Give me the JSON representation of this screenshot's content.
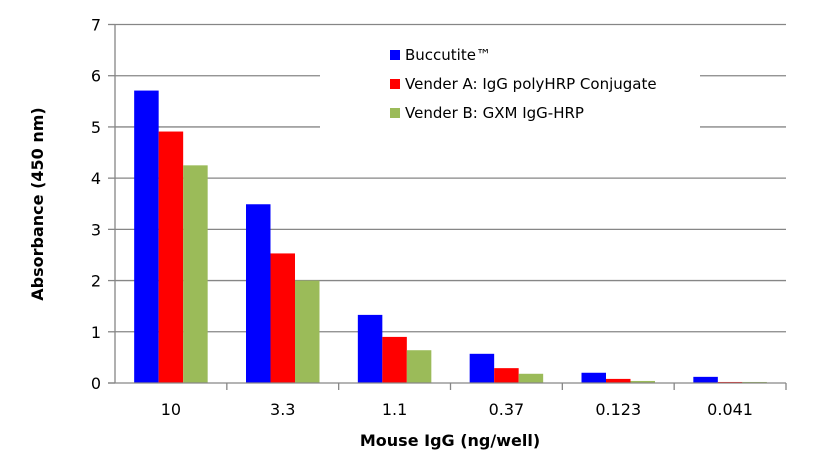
{
  "chart_data": {
    "type": "bar",
    "title": "",
    "xlabel": "Mouse IgG (ng/well)",
    "ylabel": "Absorbance (450 nm)",
    "ylim": [
      0,
      7
    ],
    "yticks": [
      "0",
      "1",
      "2",
      "3",
      "4",
      "5",
      "6",
      "7"
    ],
    "grid": true,
    "legend_position": "top-center",
    "categories": [
      "10",
      "3.3",
      "1.1",
      "0.37",
      "0.123",
      "0.041"
    ],
    "series": [
      {
        "name": "Buccutite™",
        "color": "#0000ff",
        "values": [
          5.71,
          3.49,
          1.33,
          0.57,
          0.2,
          0.12
        ]
      },
      {
        "name": "Vender A: IgG polyHRP Conjugate",
        "color": "#ff0000",
        "values": [
          4.91,
          2.53,
          0.9,
          0.29,
          0.08,
          0.02
        ]
      },
      {
        "name": "Vender B: GXM IgG-HRP",
        "color": "#9bbb59",
        "values": [
          4.25,
          2.0,
          0.64,
          0.18,
          0.04,
          0.02
        ]
      }
    ]
  }
}
